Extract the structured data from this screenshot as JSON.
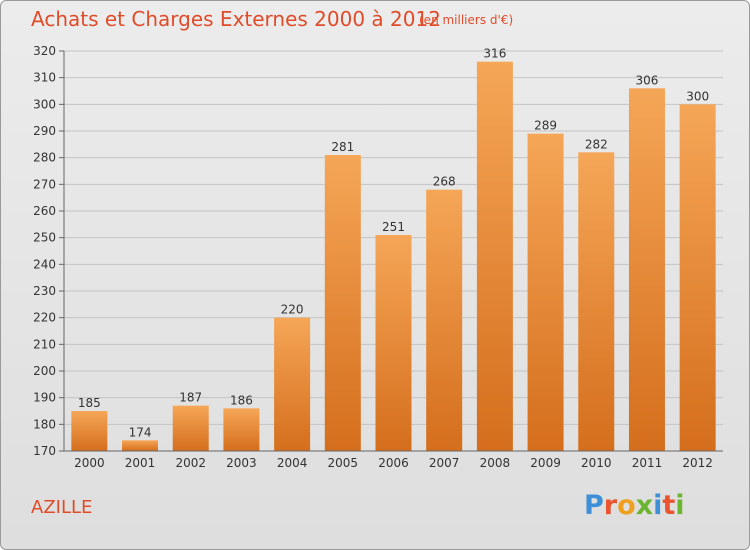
{
  "title": "Achats et Charges Externes 2000 à 2012",
  "subtitle": "(en milliers d'€)",
  "place": "AZILLE",
  "logo": {
    "text": "Proxiti",
    "letters": [
      "P",
      "r",
      "o",
      "x",
      "i",
      "t",
      "i"
    ],
    "colors": [
      "#3d8fd8",
      "#e8552f",
      "#f0a020",
      "#6bb531",
      "#3d8fd8",
      "#e8552f",
      "#6bb531"
    ]
  },
  "colors": {
    "bar_top": "#f5a657",
    "bar_bottom": "#d46e1c",
    "title": "#e04c2a"
  },
  "chart_data": {
    "type": "bar",
    "title": "Achats et Charges Externes 2000 à 2012",
    "subtitle": "(en milliers d'€)",
    "categories": [
      "2000",
      "2001",
      "2002",
      "2003",
      "2004",
      "2005",
      "2006",
      "2007",
      "2008",
      "2009",
      "2010",
      "2011",
      "2012"
    ],
    "values": [
      185,
      174,
      187,
      186,
      220,
      281,
      251,
      268,
      316,
      289,
      282,
      306,
      300
    ],
    "ylim": [
      170,
      320
    ],
    "yticks": [
      170,
      180,
      190,
      200,
      210,
      220,
      230,
      240,
      250,
      260,
      270,
      280,
      290,
      300,
      310,
      320
    ],
    "grid": true,
    "data_labels": true
  }
}
